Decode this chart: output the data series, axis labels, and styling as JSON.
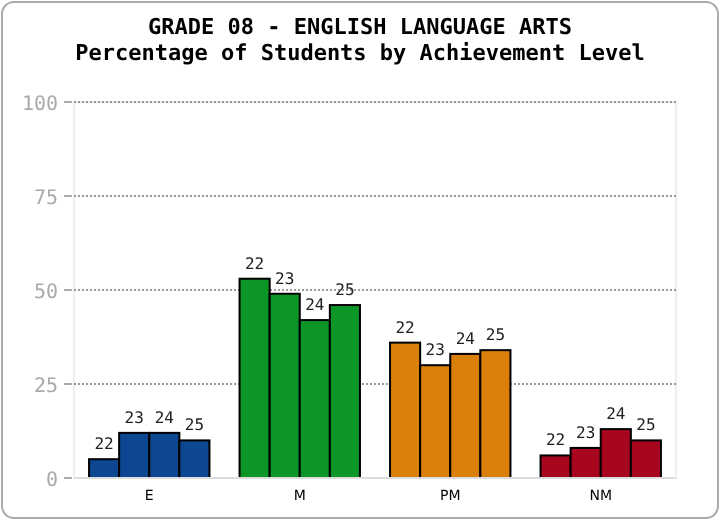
{
  "chart_data": {
    "type": "bar",
    "title": "GRADE 08 - ENGLISH LANGUAGE ARTS",
    "subtitle": "Percentage of Students by Achievement Level",
    "categories": [
      "E",
      "M",
      "PM",
      "NM"
    ],
    "series": [
      {
        "name": "22",
        "colors": [
          "#0d4691",
          "#0c9628",
          "#d97f0a",
          "#a8061f"
        ],
        "values": [
          5,
          53,
          36,
          6
        ]
      },
      {
        "name": "23",
        "colors": [
          "#0d4691",
          "#0c9628",
          "#d97f0a",
          "#a8061f"
        ],
        "values": [
          12,
          49,
          30,
          8
        ]
      },
      {
        "name": "24",
        "colors": [
          "#0d4691",
          "#0c9628",
          "#d97f0a",
          "#a8061f"
        ],
        "values": [
          12,
          42,
          33,
          13
        ]
      },
      {
        "name": "25",
        "colors": [
          "#0d4691",
          "#0c9628",
          "#d97f0a",
          "#a8061f"
        ],
        "values": [
          10,
          46,
          34,
          10
        ]
      }
    ],
    "ylim": [
      0,
      100
    ],
    "yticks": [
      0,
      25,
      50,
      75,
      100
    ],
    "grid": "y"
  }
}
